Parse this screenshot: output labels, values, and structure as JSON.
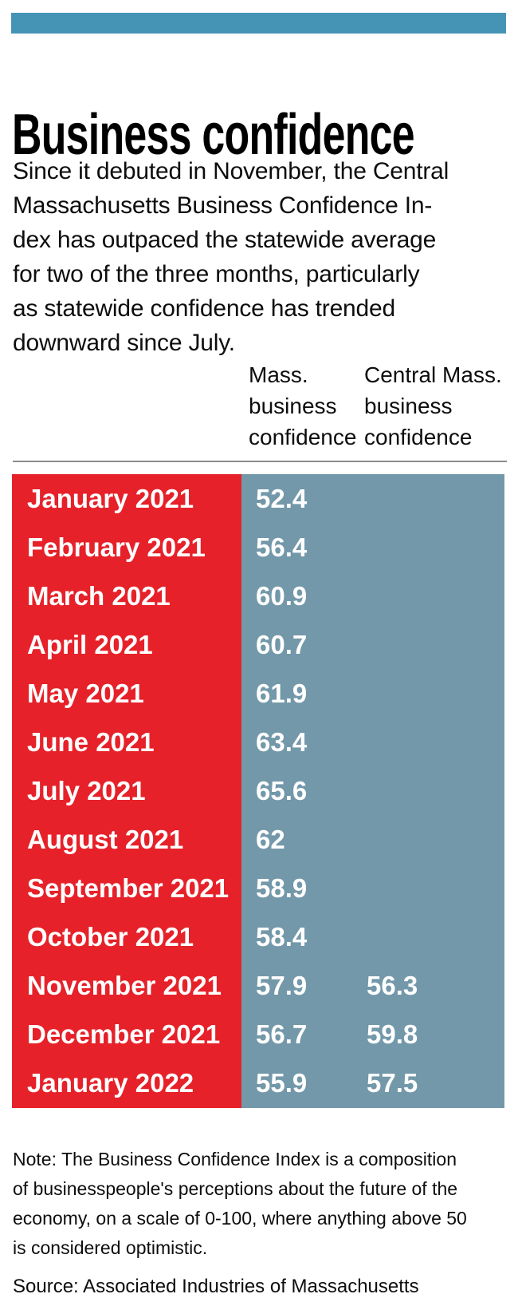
{
  "header": {
    "title": "Business confidence"
  },
  "intro": {
    "lines": [
      "Since it debuted in November, the Central",
      "Massachusetts Business Confidence In-",
      "dex has outpaced the statewide average",
      "for two of the three months, particularly",
      "as statewide confidence has trended",
      "downward since July."
    ]
  },
  "columns": {
    "col1": {
      "lines": [
        "Mass.",
        "business",
        "confidence"
      ]
    },
    "col2": {
      "lines": [
        "Central Mass.",
        "business",
        "confidence"
      ]
    }
  },
  "table": {
    "rows": [
      {
        "month": "January 2021",
        "mass": "52.4",
        "central": ""
      },
      {
        "month": "February 2021",
        "mass": "56.4",
        "central": ""
      },
      {
        "month": "March 2021",
        "mass": "60.9",
        "central": ""
      },
      {
        "month": "April 2021",
        "mass": "60.7",
        "central": ""
      },
      {
        "month": "May 2021",
        "mass": "61.9",
        "central": ""
      },
      {
        "month": "June 2021",
        "mass": "63.4",
        "central": ""
      },
      {
        "month": "July 2021",
        "mass": "65.6",
        "central": ""
      },
      {
        "month": "August 2021",
        "mass": "62",
        "central": ""
      },
      {
        "month": "September 2021",
        "mass": "58.9",
        "central": ""
      },
      {
        "month": "October 2021",
        "mass": "58.4",
        "central": ""
      },
      {
        "month": "November 2021",
        "mass": "57.9",
        "central": "56.3"
      },
      {
        "month": "December 2021",
        "mass": "56.7",
        "central": "59.8"
      },
      {
        "month": "January 2022",
        "mass": "55.9",
        "central": "57.5"
      }
    ]
  },
  "note": {
    "lines": [
      "Note: The Business Confidence Index is a composition",
      "of businesspeople's perceptions about the future of the",
      "economy, on a scale of 0-100, where anything above 50",
      "is considered optimistic."
    ]
  },
  "source": {
    "text": "Source: Associated Industries of Massachusetts"
  },
  "colors": {
    "teal": "#4594b5",
    "red": "#e62129",
    "blue": "#7398a9",
    "gray": "#8c8c8c",
    "ink": "#0d0d0d"
  },
  "chart_data": {
    "type": "table",
    "title": "Business confidence",
    "categories": [
      "January 2021",
      "February 2021",
      "March 2021",
      "April 2021",
      "May 2021",
      "June 2021",
      "July 2021",
      "August 2021",
      "September 2021",
      "October 2021",
      "November 2021",
      "December 2021",
      "January 2022"
    ],
    "series": [
      {
        "name": "Mass. business confidence",
        "values": [
          52.4,
          56.4,
          60.9,
          60.7,
          61.9,
          63.4,
          65.6,
          62,
          58.9,
          58.4,
          57.9,
          56.7,
          55.9
        ]
      },
      {
        "name": "Central Mass. business confidence",
        "values": [
          null,
          null,
          null,
          null,
          null,
          null,
          null,
          null,
          null,
          null,
          56.3,
          59.8,
          57.5
        ]
      }
    ],
    "value_range_note": "Index scale 0-100, above 50 is optimistic",
    "legend_position": "column headers above table",
    "grid": false
  }
}
